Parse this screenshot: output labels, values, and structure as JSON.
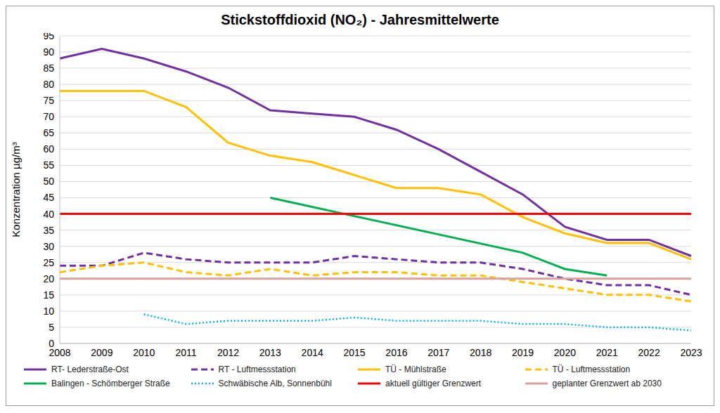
{
  "chart_data": {
    "type": "line",
    "title": "Stickstoffdioxid (NO₂) - Jahresmittelwerte",
    "y_label": "Konzentration µg/m³",
    "categories": [
      "2008",
      "2009",
      "2010",
      "2011",
      "2012",
      "2013",
      "2014",
      "2015",
      "2016",
      "2017",
      "2018",
      "2019",
      "2020",
      "2021",
      "2022",
      "2023"
    ],
    "ylim": [
      0,
      95
    ],
    "yticks": [
      0,
      5,
      10,
      15,
      20,
      25,
      30,
      35,
      40,
      45,
      50,
      55,
      60,
      65,
      70,
      75,
      80,
      85,
      90,
      95
    ],
    "grid": true,
    "legend": "bottom",
    "series": [
      {
        "name": "RT- Lederstraße-Ost",
        "color": "#7030a0",
        "line_style": "solid",
        "values": [
          88,
          91,
          88,
          84,
          79,
          72,
          71,
          70,
          66,
          60,
          53,
          46,
          36,
          32,
          32,
          27
        ]
      },
      {
        "name": "RT - Luftmessstation",
        "color": "#7030a0",
        "line_style": "dashed",
        "values": [
          24,
          24,
          28,
          26,
          25,
          25,
          25,
          27,
          26,
          25,
          25,
          23,
          20,
          18,
          18,
          15
        ]
      },
      {
        "name": "TÜ - Mühlstraße",
        "color": "#ffc000",
        "line_style": "solid",
        "values": [
          78,
          78,
          78,
          73,
          62,
          58,
          56,
          52,
          48,
          48,
          46,
          39,
          34,
          31,
          31,
          26
        ]
      },
      {
        "name": "TÜ - Luftmessstation",
        "color": "#ffc000",
        "line_style": "dashed",
        "values": [
          22,
          24,
          25,
          22,
          21,
          23,
          21,
          22,
          22,
          21,
          21,
          19,
          17,
          15,
          15,
          13
        ]
      },
      {
        "name": "Balingen - Schömberger Straße",
        "color": "#00b050",
        "line_style": "solid",
        "values": [
          null,
          null,
          null,
          null,
          null,
          45,
          null,
          null,
          null,
          null,
          null,
          28,
          23,
          21,
          null,
          null
        ]
      },
      {
        "name": "Schwäbische Alb, Sonnenbühl",
        "color": "#00b0f0",
        "line_style": "dotted",
        "values": [
          null,
          null,
          9,
          6,
          7,
          7,
          7,
          8,
          7,
          7,
          7,
          6,
          6,
          5,
          5,
          4
        ]
      },
      {
        "name": "aktuell gültiger Grenzwert",
        "color": "#ff0000",
        "line_style": "solid",
        "values": [
          40,
          40,
          40,
          40,
          40,
          40,
          40,
          40,
          40,
          40,
          40,
          40,
          40,
          40,
          40,
          40
        ]
      },
      {
        "name": "geplanter Grenzwert ab 2030",
        "color": "#d9a0a0",
        "line_style": "solid",
        "values": [
          20,
          20,
          20,
          20,
          20,
          20,
          20,
          20,
          20,
          20,
          20,
          20,
          20,
          20,
          20,
          20
        ]
      }
    ]
  }
}
